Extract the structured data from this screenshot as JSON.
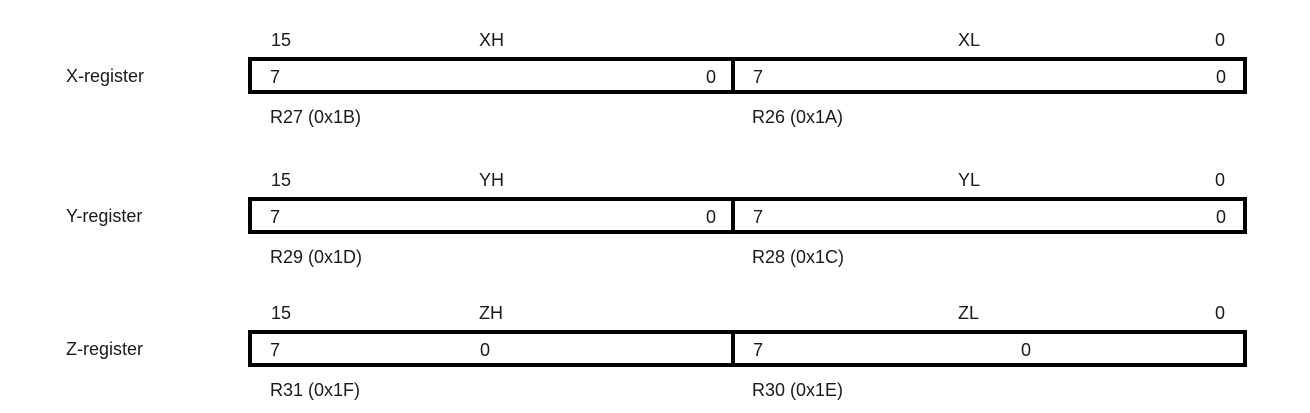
{
  "diagram": {
    "registers": [
      {
        "name": "X-register",
        "bit_high": "15",
        "bit_low": "0",
        "high_byte_name": "XH",
        "low_byte_name": "XL",
        "high_box": {
          "msb": "7",
          "lsb": "0",
          "register": "R27 (0x1B)"
        },
        "low_box": {
          "msb": "7",
          "lsb": "0",
          "register": "R26 (0x1A)"
        }
      },
      {
        "name": "Y-register",
        "bit_high": "15",
        "bit_low": "0",
        "high_byte_name": "YH",
        "low_byte_name": "YL",
        "high_box": {
          "msb": "7",
          "lsb": "0",
          "register": "R29 (0x1D)"
        },
        "low_box": {
          "msb": "7",
          "lsb": "0",
          "register": "R28 (0x1C)"
        }
      },
      {
        "name": "Z-register",
        "bit_high": "15",
        "bit_low": "0",
        "high_byte_name": "ZH",
        "low_byte_name": "ZL",
        "high_box": {
          "msb": "7",
          "lsb": "0",
          "register": "R31 (0x1F)"
        },
        "low_box": {
          "msb": "7",
          "lsb": "0",
          "register": "R30 (0x1E)"
        }
      }
    ]
  }
}
